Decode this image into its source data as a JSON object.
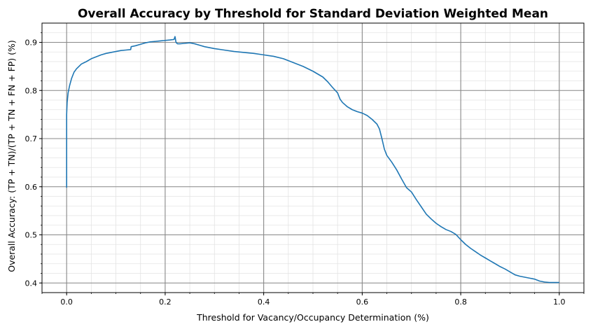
{
  "chart_data": {
    "type": "line",
    "title": "Overall Accuracy by Threshold for Standard Deviation Weighted Mean",
    "xlabel": "Threshold for Vacancy/Occupancy Determination (%)",
    "ylabel": "Overall Accuracy: (TP + TN)/(TP + TN + FN + FP) (%)",
    "xlim": [
      -0.05,
      1.05
    ],
    "ylim": [
      0.38,
      0.94
    ],
    "xticks": [
      0.0,
      0.2,
      0.4,
      0.6,
      0.8,
      1.0
    ],
    "xtick_labels": [
      "0.0",
      "0.2",
      "0.4",
      "0.6",
      "0.8",
      "1.0"
    ],
    "yticks": [
      0.4,
      0.5,
      0.6,
      0.7,
      0.8,
      0.9
    ],
    "ytick_labels": [
      "0.4",
      "0.5",
      "0.6",
      "0.7",
      "0.8",
      "0.9"
    ],
    "grid": true,
    "minor_grid": true,
    "line_color": "#1f77b4",
    "series": [
      {
        "name": "Overall Accuracy",
        "x": [
          0.0,
          0.0,
          0.001,
          0.003,
          0.006,
          0.01,
          0.015,
          0.02,
          0.03,
          0.04,
          0.05,
          0.06,
          0.07,
          0.08,
          0.09,
          0.1,
          0.11,
          0.12,
          0.13,
          0.131,
          0.14,
          0.15,
          0.16,
          0.17,
          0.18,
          0.19,
          0.2,
          0.21,
          0.218,
          0.22,
          0.222,
          0.225,
          0.23,
          0.24,
          0.25,
          0.26,
          0.27,
          0.28,
          0.3,
          0.32,
          0.34,
          0.36,
          0.38,
          0.4,
          0.42,
          0.44,
          0.46,
          0.48,
          0.5,
          0.52,
          0.53,
          0.54,
          0.55,
          0.555,
          0.56,
          0.57,
          0.58,
          0.59,
          0.6,
          0.61,
          0.62,
          0.63,
          0.635,
          0.64,
          0.645,
          0.65,
          0.66,
          0.67,
          0.68,
          0.69,
          0.7,
          0.71,
          0.72,
          0.73,
          0.74,
          0.75,
          0.76,
          0.77,
          0.78,
          0.79,
          0.8,
          0.81,
          0.82,
          0.83,
          0.84,
          0.85,
          0.86,
          0.87,
          0.88,
          0.89,
          0.9,
          0.91,
          0.92,
          0.93,
          0.94,
          0.95,
          0.96,
          0.97,
          0.98,
          0.99,
          1.0
        ],
        "values": [
          0.598,
          0.75,
          0.775,
          0.795,
          0.81,
          0.825,
          0.838,
          0.845,
          0.855,
          0.86,
          0.866,
          0.87,
          0.874,
          0.877,
          0.879,
          0.881,
          0.883,
          0.884,
          0.885,
          0.891,
          0.893,
          0.896,
          0.899,
          0.901,
          0.902,
          0.903,
          0.904,
          0.905,
          0.906,
          0.912,
          0.9,
          0.897,
          0.897,
          0.898,
          0.899,
          0.897,
          0.894,
          0.891,
          0.887,
          0.884,
          0.881,
          0.879,
          0.877,
          0.874,
          0.871,
          0.866,
          0.858,
          0.85,
          0.84,
          0.828,
          0.818,
          0.806,
          0.795,
          0.782,
          0.775,
          0.766,
          0.76,
          0.756,
          0.753,
          0.748,
          0.74,
          0.73,
          0.72,
          0.7,
          0.678,
          0.665,
          0.651,
          0.635,
          0.616,
          0.598,
          0.589,
          0.573,
          0.558,
          0.543,
          0.533,
          0.524,
          0.517,
          0.511,
          0.507,
          0.501,
          0.49,
          0.48,
          0.472,
          0.465,
          0.458,
          0.452,
          0.446,
          0.44,
          0.434,
          0.429,
          0.423,
          0.417,
          0.414,
          0.412,
          0.41,
          0.408,
          0.404,
          0.402,
          0.401,
          0.401,
          0.401
        ]
      }
    ]
  }
}
